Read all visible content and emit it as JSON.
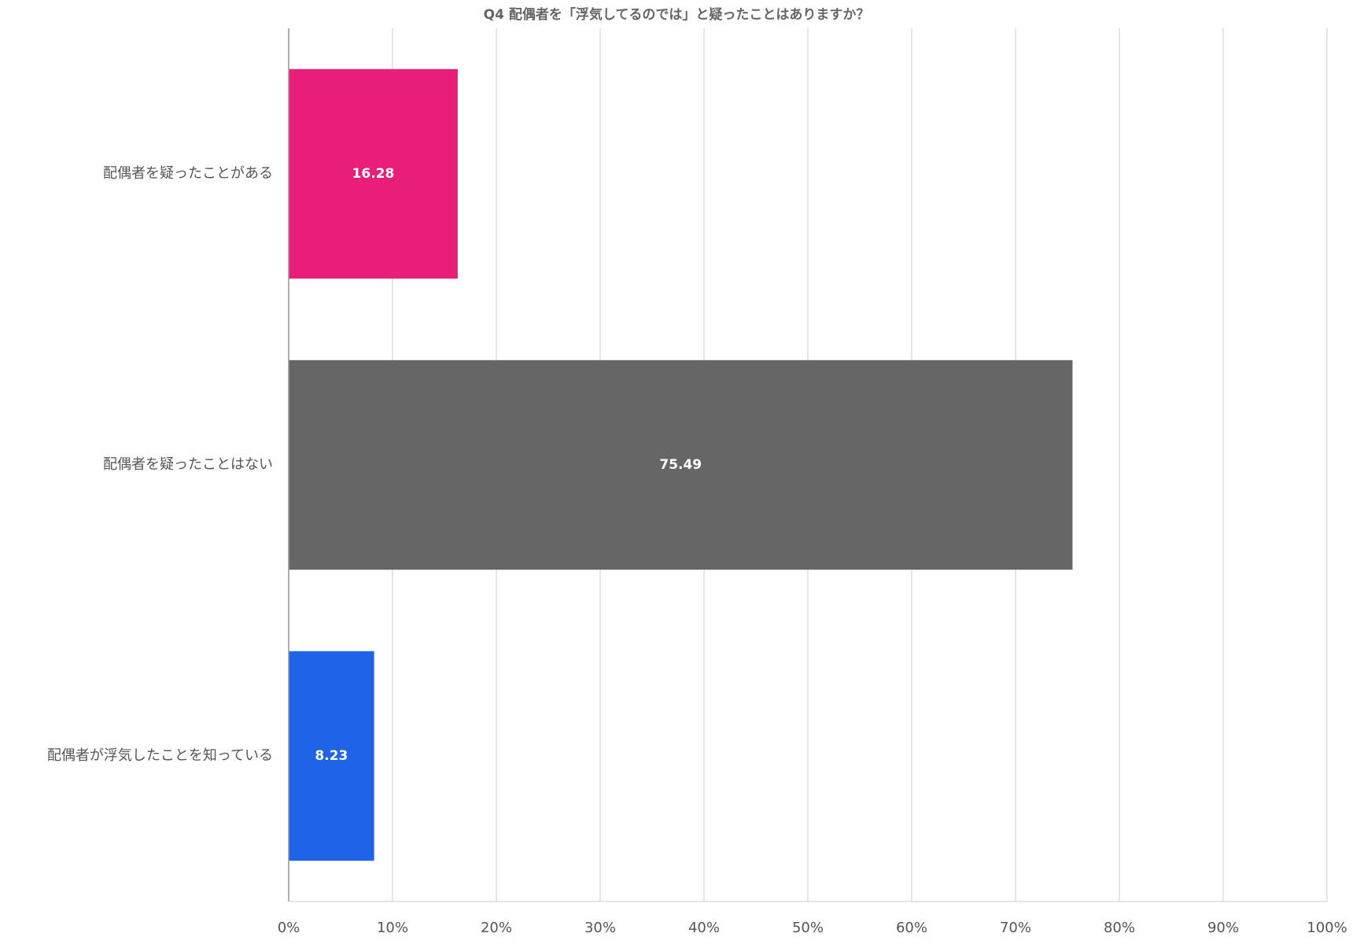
{
  "chart_data": {
    "type": "bar",
    "orientation": "horizontal",
    "title": "Q4 配偶者を「浮気してるのでは」と疑ったことはありますか？",
    "categories": [
      "配偶者を疑ったことがある",
      "配偶者を疑ったことはない",
      "配偶者が浮気したことを知っている"
    ],
    "values": [
      16.28,
      75.49,
      8.23
    ],
    "colors": [
      "#e91e7a",
      "#666666",
      "#1f63e8"
    ],
    "xlim": [
      0,
      100
    ],
    "xticks": [
      {
        "value": 0,
        "label": "0%"
      },
      {
        "value": 10,
        "label": "10%"
      },
      {
        "value": 20,
        "label": "20%"
      },
      {
        "value": 30,
        "label": "30%"
      },
      {
        "value": 40,
        "label": "40%"
      },
      {
        "value": 50,
        "label": "50%"
      },
      {
        "value": 60,
        "label": "60%"
      },
      {
        "value": 70,
        "label": "70%"
      },
      {
        "value": 80,
        "label": "80%"
      },
      {
        "value": 90,
        "label": "90%"
      },
      {
        "value": 100,
        "label": "100%"
      }
    ],
    "grid": true
  }
}
